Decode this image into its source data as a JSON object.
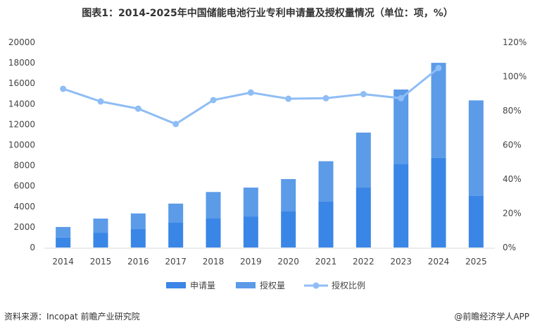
{
  "title": "图表1：2014-2025年中国储能电池行业专利申请量及授权量情况（单位：项，%）",
  "source": "资料来源：Incopat  前瞻产业研究院",
  "brand": "@前瞻经济学人APP",
  "colors": {
    "application": "#3a86e6",
    "grant": "#5b9be8",
    "ratio": "#8fbdf5"
  },
  "chart_data": {
    "type": "bar",
    "stacked": true,
    "categories": [
      "2014",
      "2015",
      "2016",
      "2017",
      "2018",
      "2019",
      "2020",
      "2021",
      "2022",
      "2023",
      "2024",
      "2025"
    ],
    "series": [
      {
        "name": "申请量",
        "values": [
          980,
          1440,
          1790,
          2450,
          2860,
          3020,
          3550,
          4470,
          5840,
          8160,
          8750,
          5020
        ]
      },
      {
        "name": "授权量",
        "values": [
          1020,
          1380,
          1530,
          1830,
          2550,
          2820,
          3120,
          3940,
          5360,
          7240,
          9250,
          9320
        ]
      },
      {
        "name": "授权比例",
        "type": "line",
        "axis": "right",
        "values": [
          92.8,
          85.4,
          81.2,
          72.2,
          86.2,
          90.6,
          87.0,
          87.3,
          89.7,
          87.3,
          105.0,
          null
        ]
      }
    ],
    "ylim": [
      0,
      20000
    ],
    "yticks": [
      "0",
      "2000",
      "4000",
      "6000",
      "8000",
      "10000",
      "12000",
      "14000",
      "16000",
      "18000",
      "20000"
    ],
    "y2lim": [
      0,
      120
    ],
    "y2ticks": [
      "0%",
      "20%",
      "40%",
      "60%",
      "80%",
      "100%",
      "120%"
    ],
    "grid": false,
    "legend": "bottom"
  }
}
